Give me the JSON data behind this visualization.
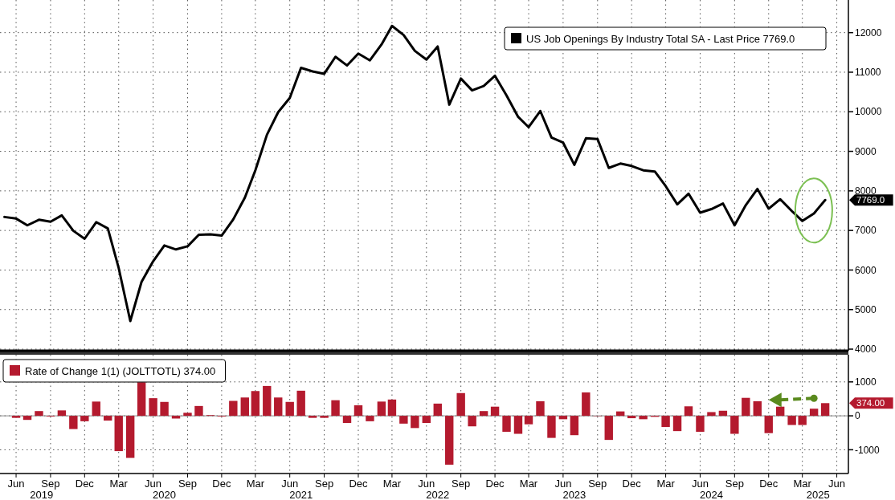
{
  "chart_data": [
    {
      "type": "line",
      "legend": "top right",
      "grid": true,
      "line_style": "solid",
      "tick_labels": "y",
      "xlim": [
        "2019-04-19",
        "2025-07-02"
      ],
      "ylim": [
        3960,
        12825
      ],
      "yticks": [
        4000,
        5000,
        6000,
        7000,
        8000,
        9000,
        10000,
        11000,
        12000
      ],
      "xticks": [
        "2019-06",
        "2019-09",
        "2019-12",
        "2020-03",
        "2020-06",
        "2020-09",
        "2020-12",
        "2021-03",
        "2021-06",
        "2021-09",
        "2021-12",
        "2022-03",
        "2022-06",
        "2022-09",
        "2022-12",
        "2023-03",
        "2023-06",
        "2023-09",
        "2023-12",
        "2024-03",
        "2024-06",
        "2024-09",
        "2024-12",
        "2025-03",
        "2025-06"
      ],
      "annotations": [
        "7769.0"
      ],
      "series": [
        {
          "name": "US Job Openings By Industry Total SA - Last Price 7769.0",
          "color": "#000000",
          "x": [
            "2019-05",
            "2019-06",
            "2019-07",
            "2019-08",
            "2019-09",
            "2019-10",
            "2019-11",
            "2019-12",
            "2020-01",
            "2020-02",
            "2020-03",
            "2020-04",
            "2020-05",
            "2020-06",
            "2020-07",
            "2020-08",
            "2020-09",
            "2020-10",
            "2020-11",
            "2020-12",
            "2021-01",
            "2021-02",
            "2021-03",
            "2021-04",
            "2021-05",
            "2021-06",
            "2021-07",
            "2021-08",
            "2021-09",
            "2021-10",
            "2021-11",
            "2021-12",
            "2022-01",
            "2022-02",
            "2022-03",
            "2022-04",
            "2022-05",
            "2022-06",
            "2022-07",
            "2022-08",
            "2022-09",
            "2022-10",
            "2022-11",
            "2022-12",
            "2023-01",
            "2023-02",
            "2023-03",
            "2023-04",
            "2023-05",
            "2023-06",
            "2023-07",
            "2023-08",
            "2023-09",
            "2023-10",
            "2023-11",
            "2023-12",
            "2024-01",
            "2024-02",
            "2024-03",
            "2024-04",
            "2024-05",
            "2024-06",
            "2024-07",
            "2024-08",
            "2024-09",
            "2024-10",
            "2024-11",
            "2024-12",
            "2025-01",
            "2025-02",
            "2025-03",
            "2025-04",
            "2025-05"
          ],
          "values": [
            7340,
            7300,
            7130,
            7270,
            7220,
            7380,
            6990,
            6790,
            7210,
            7050,
            6050,
            4710,
            5700,
            6220,
            6620,
            6520,
            6600,
            6890,
            6900,
            6870,
            7280,
            7830,
            8520,
            9420,
            9990,
            10350,
            11110,
            11020,
            10960,
            11390,
            11170,
            11470,
            11300,
            11700,
            12170,
            11940,
            11540,
            11320,
            11650,
            10180,
            10840,
            10540,
            10650,
            10910,
            10410,
            9870,
            9610,
            10020,
            9350,
            9220,
            8660,
            9330,
            9310,
            8580,
            8690,
            8630,
            8520,
            8490,
            8120,
            7660,
            7930,
            7450,
            7540,
            7680,
            7130,
            7640,
            8050,
            7550,
            7790,
            7490,
            7240,
            7430,
            7769
          ]
        }
      ]
    },
    {
      "type": "bar",
      "legend": "top left",
      "grid": true,
      "xlim": [
        "2019-04-19",
        "2025-07-02"
      ],
      "ylim": [
        -1700,
        1800
      ],
      "yticks": [
        -1000,
        0,
        1000
      ],
      "xticks": [
        {
          "value": "2019-06",
          "label": "Jun"
        },
        {
          "value": "2019-09",
          "label": "Sep"
        },
        {
          "value": "2019-12",
          "label": "Dec"
        },
        {
          "value": "2020-03",
          "label": "Mar"
        },
        {
          "value": "2020-06",
          "label": "Jun"
        },
        {
          "value": "2020-09",
          "label": "Sep"
        },
        {
          "value": "2020-12",
          "label": "Dec"
        },
        {
          "value": "2021-03",
          "label": "Mar"
        },
        {
          "value": "2021-06",
          "label": "Jun"
        },
        {
          "value": "2021-09",
          "label": "Sep"
        },
        {
          "value": "2021-12",
          "label": "Dec"
        },
        {
          "value": "2022-03",
          "label": "Mar"
        },
        {
          "value": "2022-06",
          "label": "Jun"
        },
        {
          "value": "2022-09",
          "label": "Sep"
        },
        {
          "value": "2022-12",
          "label": "Dec"
        },
        {
          "value": "2023-03",
          "label": "Mar"
        },
        {
          "value": "2023-06",
          "label": "Jun"
        },
        {
          "value": "2023-09",
          "label": "Sep"
        },
        {
          "value": "2023-12",
          "label": "Dec"
        },
        {
          "value": "2024-03",
          "label": "Mar"
        },
        {
          "value": "2024-06",
          "label": "Jun"
        },
        {
          "value": "2024-09",
          "label": "Sep"
        },
        {
          "value": "2024-12",
          "label": "Dec"
        },
        {
          "value": "2025-03",
          "label": "Mar"
        },
        {
          "value": "2025-06",
          "label": "Jun"
        }
      ],
      "x2ticks": [
        {
          "value": "2019-08-08",
          "label": "2019"
        },
        {
          "value": "2020-07-01",
          "label": "2020"
        },
        {
          "value": "2021-07-01",
          "label": "2021"
        },
        {
          "value": "2022-07-01",
          "label": "2022"
        },
        {
          "value": "2023-07-01",
          "label": "2023"
        },
        {
          "value": "2024-07-01",
          "label": "2024"
        },
        {
          "value": "2025-04-12",
          "label": "2025"
        }
      ],
      "annotations": [
        "374.00"
      ],
      "x2lim": [
        "2019-04-19",
        "2025-07-02"
      ],
      "series": [
        {
          "name": "Rate of Change 1(1) (JOLTTOTL) 374.00",
          "color": "#b41a2e",
          "x": [
            "2019-06",
            "2019-07",
            "2019-08",
            "2019-09",
            "2019-10",
            "2019-11",
            "2019-12",
            "2020-01",
            "2020-02",
            "2020-03",
            "2020-04",
            "2020-05",
            "2020-06",
            "2020-07",
            "2020-08",
            "2020-09",
            "2020-10",
            "2020-11",
            "2020-12",
            "2021-01",
            "2021-02",
            "2021-03",
            "2021-04",
            "2021-05",
            "2021-06",
            "2021-07",
            "2021-08",
            "2021-09",
            "2021-10",
            "2021-11",
            "2021-12",
            "2022-01",
            "2022-02",
            "2022-03",
            "2022-04",
            "2022-05",
            "2022-06",
            "2022-07",
            "2022-08",
            "2022-09",
            "2022-10",
            "2022-11",
            "2022-12",
            "2023-01",
            "2023-02",
            "2023-03",
            "2023-04",
            "2023-05",
            "2023-06",
            "2023-07",
            "2023-08",
            "2023-09",
            "2023-10",
            "2023-11",
            "2023-12",
            "2024-01",
            "2024-02",
            "2024-03",
            "2024-04",
            "2024-05",
            "2024-06",
            "2024-07",
            "2024-08",
            "2024-09",
            "2024-10",
            "2024-11",
            "2024-12",
            "2025-01",
            "2025-02",
            "2025-03",
            "2025-04",
            "2025-05"
          ],
          "values": [
            -60,
            -120,
            140,
            -20,
            160,
            -390,
            -160,
            420,
            -140,
            -1040,
            -1240,
            990,
            520,
            410,
            -80,
            90,
            290,
            20,
            -20,
            440,
            540,
            730,
            880,
            540,
            410,
            740,
            -60,
            -60,
            460,
            -210,
            310,
            -160,
            420,
            480,
            -230,
            -360,
            -210,
            360,
            -1440,
            670,
            -310,
            140,
            270,
            -470,
            -530,
            -250,
            430,
            -650,
            -100,
            -570,
            690,
            -10,
            -710,
            130,
            -70,
            -100,
            -30,
            -330,
            -450,
            280,
            -470,
            110,
            150,
            -530,
            530,
            430,
            -510,
            270,
            -270,
            -270,
            210,
            374
          ]
        }
      ]
    }
  ]
}
